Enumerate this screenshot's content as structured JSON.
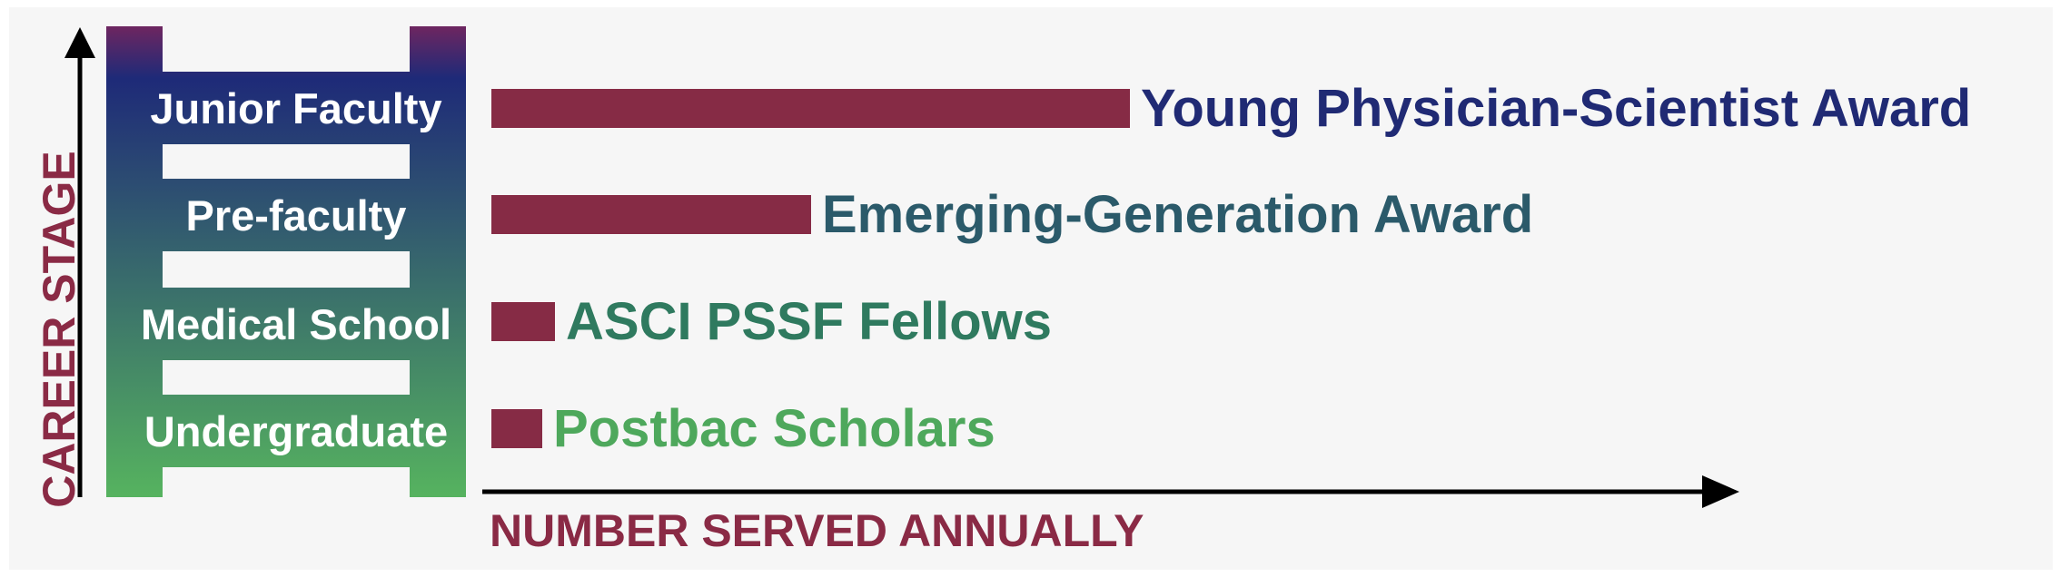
{
  "axes": {
    "y_title": "CAREER STAGE",
    "x_title": "NUMBER SERVED ANNUALLY"
  },
  "colors": {
    "axis_title": "#8a2a45",
    "bar": "#862b45",
    "ladder_top": "#1e2a78",
    "ladder_top_accent": "#6e2660",
    "ladder_bottom": "#56b35f",
    "arrow": "#000000"
  },
  "stages": [
    {
      "label": "Junior Faculty",
      "program": "Young Physician-Scientist Award",
      "relative_count": 1.0,
      "program_color": "#202a74"
    },
    {
      "label": "Pre-faculty",
      "program": "Emerging-Generation Award",
      "relative_count": 0.5,
      "program_color": "#2b5a6a"
    },
    {
      "label": "Medical School",
      "program": "ASCI PSSF Fellows",
      "relative_count": 0.1,
      "program_color": "#2f7a5f"
    },
    {
      "label": "Undergraduate",
      "program": "Postbac Scholars",
      "relative_count": 0.08,
      "program_color": "#4ea85c"
    }
  ]
}
